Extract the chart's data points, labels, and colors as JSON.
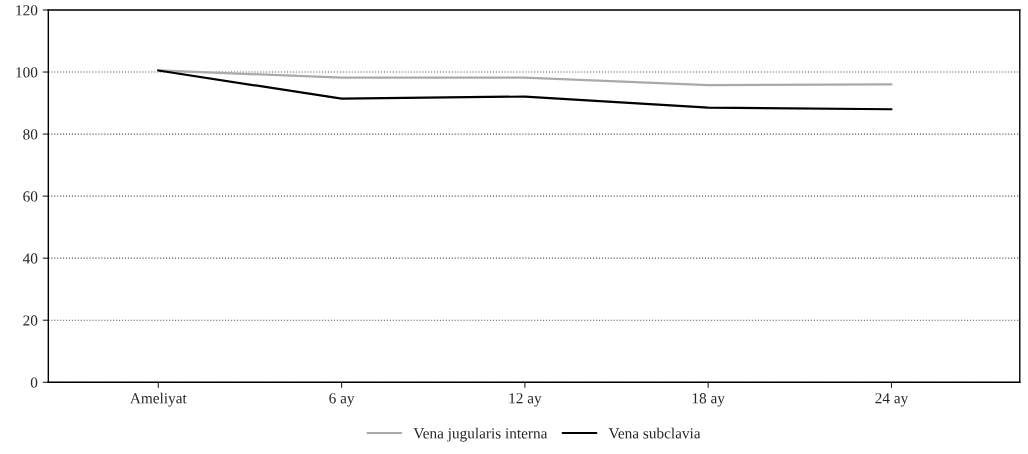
{
  "chart_data": {
    "type": "line",
    "categories": [
      "Ameliyat",
      "6 ay",
      "12 ay",
      "18 ay",
      "24 ay"
    ],
    "series": [
      {
        "name": "Vena jugularis interna",
        "color": "#aaaaaa",
        "values": [
          100.5,
          98.2,
          98.2,
          95.8,
          96.0
        ]
      },
      {
        "name": "Vena subclavia",
        "color": "#000000",
        "values": [
          100.5,
          91.4,
          92.1,
          88.5,
          88.0
        ]
      }
    ],
    "ylim": [
      0,
      120
    ],
    "yticks": [
      0,
      20,
      40,
      60,
      80,
      100,
      120
    ],
    "grid": "y",
    "legend": "bottom",
    "marker": "none",
    "line_style": "solid"
  }
}
